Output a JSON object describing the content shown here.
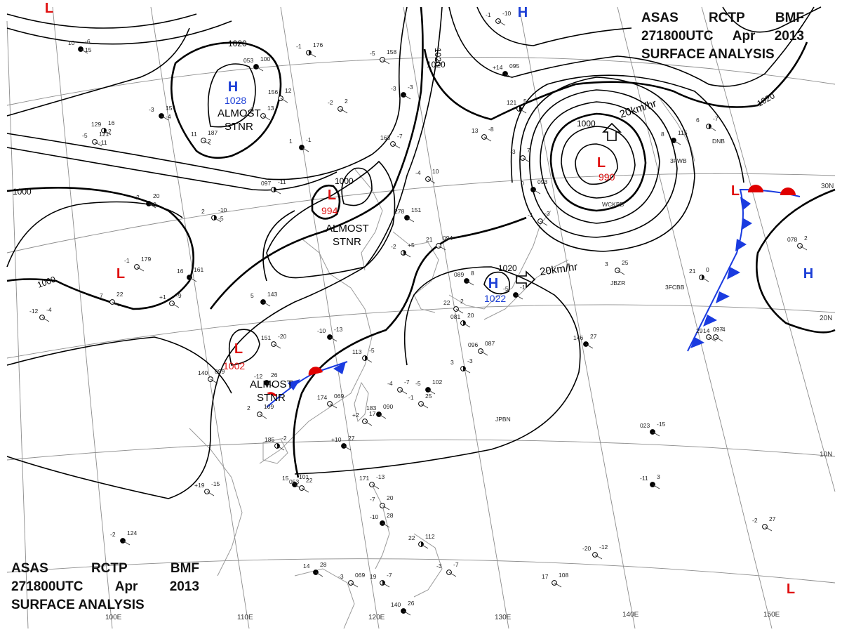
{
  "header": {
    "product_words": [
      "ASAS",
      "RCTP",
      "BMF"
    ],
    "time_words": [
      "271800UTC",
      "Apr",
      "2013"
    ],
    "title": "SURFACE ANALYSIS"
  },
  "colors": {
    "high": "#1c3fd6",
    "low": "#e01010",
    "isobar": "#000000",
    "grid": "#8c8c8c",
    "coast": "#9a9a9a",
    "front_triangle": "#1a3be0",
    "front_semicircle": "#e00000"
  },
  "graticule": {
    "latitude_labels": [
      "30N",
      "20N",
      "10N"
    ],
    "longitude_labels": [
      "100E",
      "110E",
      "120E",
      "130E",
      "140E",
      "150E"
    ]
  },
  "pressure_centers": [
    {
      "id": "h-mongolia",
      "type": "H",
      "pressure": "1028"
    },
    {
      "id": "h-taiwan-east",
      "type": "H",
      "pressure": "1022"
    },
    {
      "id": "h-north",
      "type": "H",
      "pressure": ""
    },
    {
      "id": "h-pacific",
      "type": "H",
      "pressure": ""
    },
    {
      "id": "l-japan",
      "type": "L",
      "pressure": "990"
    },
    {
      "id": "l-east-china",
      "type": "L",
      "pressure": "994"
    },
    {
      "id": "l-vietnam",
      "type": "L",
      "pressure": "1002"
    },
    {
      "id": "l-india",
      "type": "L",
      "pressure": ""
    },
    {
      "id": "l-northwest",
      "type": "L",
      "pressure": ""
    },
    {
      "id": "l-pacific-east",
      "type": "L",
      "pressure": ""
    },
    {
      "id": "l-pacific-se",
      "type": "L",
      "pressure": ""
    }
  ],
  "isobar_labels": [
    "1020",
    "1020",
    "1020",
    "1020",
    "1000",
    "1000",
    "1000",
    "1000",
    "1020"
  ],
  "annotations": {
    "stationary_1": [
      "ALMOST",
      "STNR"
    ],
    "stationary_2": [
      "ALMOST",
      "STNR"
    ],
    "stationary_3": [
      "ALMOST",
      "STNR"
    ],
    "motion_1": "20km/hr",
    "motion_2": "20km/hr"
  },
  "station_values": [
    "10",
    "129",
    "-5",
    "-3",
    "11",
    "2",
    "2",
    "-1",
    "+1",
    "16",
    "-12",
    "7",
    "5",
    "097",
    "6",
    "053",
    "156",
    "-1",
    "1",
    "-2",
    "-5",
    "-3",
    "163",
    "-4",
    "278",
    "-2",
    "21",
    "089",
    "13",
    "121",
    "+14",
    "-1",
    "-3",
    "0",
    "-1",
    "3",
    "8",
    "6",
    "14",
    "146",
    "096",
    "3",
    "-5",
    "-4",
    "-1",
    "183",
    "+2",
    "174",
    "-10",
    "113",
    "151",
    "-12",
    "2",
    "185",
    "+10",
    "140",
    "+19",
    "15",
    "171",
    "-7",
    "-10",
    "22",
    "-3",
    "14",
    "-3",
    "19",
    "140",
    "17",
    "-20",
    "-11",
    "-2",
    "29",
    "023",
    "21",
    "053",
    "-2",
    "22",
    "081",
    "-5",
    "078",
    "-6",
    "16",
    "121",
    "15",
    "187",
    "-10",
    "20",
    "179",
    "-9",
    "161",
    "-4",
    "22",
    "143",
    "-11",
    "13",
    "100",
    "12",
    "176",
    "-1",
    "2",
    "158",
    "-3",
    "-7",
    "10",
    "151",
    "+5",
    "094",
    "8",
    "-8",
    "5",
    "095",
    "-10",
    "7",
    "093",
    "-3",
    "25",
    "115",
    "-7",
    "-4",
    "27",
    "087",
    "-3",
    "102",
    "-7",
    "25",
    "090",
    "17",
    "069",
    "-13",
    "-5",
    "-20",
    "26",
    "109",
    "-2",
    "27",
    "099",
    "-15",
    "101",
    "-13",
    "20",
    "28",
    "112",
    "-7",
    "28",
    "069",
    "-7",
    "26",
    "108",
    "-12",
    "3",
    "27",
    "097",
    "-15",
    "0",
    "22",
    "124",
    "2",
    "20",
    "-1",
    "2",
    "15",
    "2",
    "-11",
    "-4",
    "2",
    "-5",
    "0"
  ],
  "station_ids": [
    "WCKBB",
    "JBZR",
    "3FCBB",
    "JPBN",
    "DNB",
    "3FWB"
  ]
}
